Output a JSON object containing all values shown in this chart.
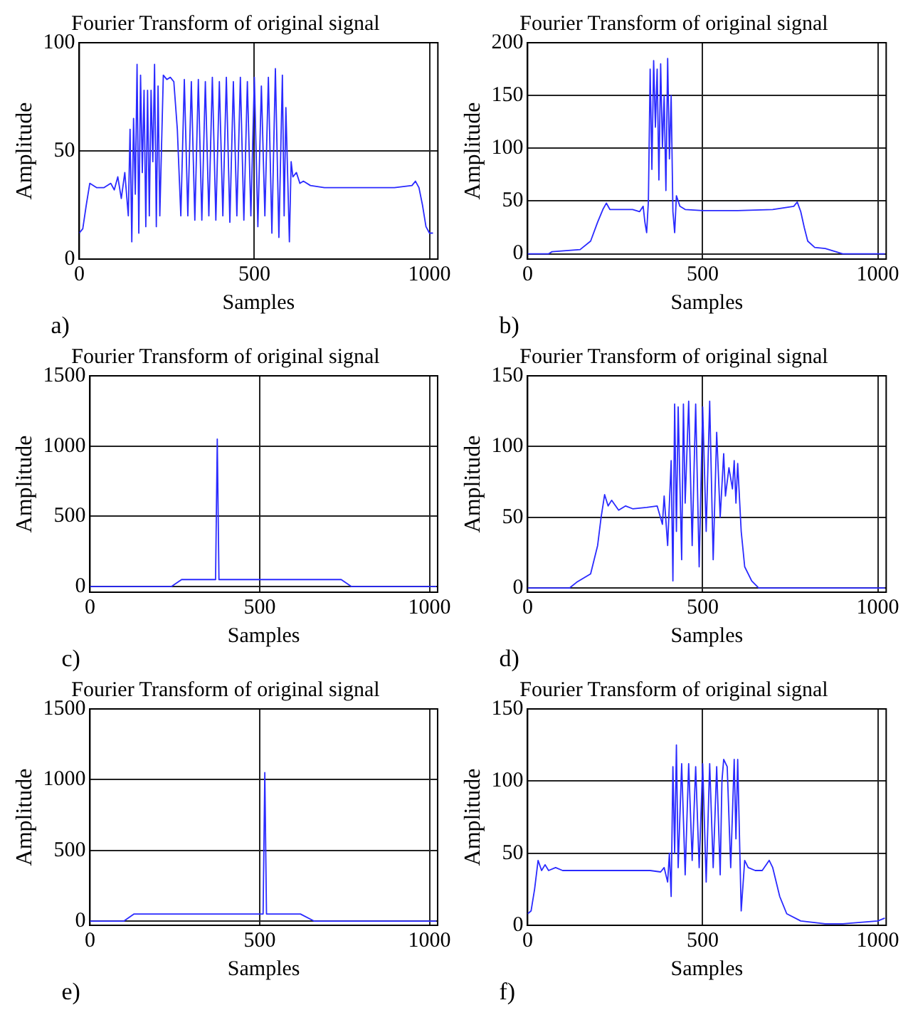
{
  "chart_data": [
    {
      "type": "line",
      "title": "Fourier Transform of original signal",
      "xlabel": "Samples",
      "ylabel": "Amplitude",
      "annotations": [
        "a)"
      ],
      "grid": true,
      "xlim": [
        0,
        1024
      ],
      "xticks": [
        0,
        500,
        1000
      ],
      "ylim": [
        0,
        100
      ],
      "yticks": [
        0,
        50,
        100
      ],
      "x": [
        0,
        10,
        20,
        30,
        50,
        70,
        90,
        100,
        110,
        120,
        130,
        140,
        145,
        150,
        155,
        160,
        165,
        170,
        175,
        180,
        185,
        190,
        195,
        200,
        205,
        210,
        215,
        220,
        225,
        230,
        240,
        250,
        260,
        270,
        280,
        290,
        300,
        310,
        320,
        330,
        340,
        350,
        360,
        370,
        380,
        390,
        400,
        410,
        420,
        430,
        440,
        450,
        460,
        470,
        480,
        490,
        500,
        510,
        520,
        530,
        540,
        550,
        560,
        570,
        580,
        585,
        590,
        600,
        605,
        610,
        620,
        630,
        640,
        660,
        700,
        800,
        900,
        950,
        960,
        970,
        980,
        990,
        1000,
        1010
      ],
      "series": [
        {
          "color": "#2a2aff",
          "values": [
            12,
            14,
            25,
            35,
            33,
            33,
            35,
            32,
            38,
            28,
            40,
            20,
            60,
            8,
            65,
            30,
            90,
            12,
            85,
            40,
            78,
            15,
            78,
            20,
            78,
            45,
            90,
            15,
            80,
            20,
            85,
            83,
            84,
            82,
            60,
            20,
            83,
            20,
            82,
            18,
            83,
            18,
            82,
            20,
            84,
            18,
            82,
            20,
            84,
            17,
            82,
            20,
            84,
            18,
            82,
            20,
            84,
            15,
            80,
            20,
            84,
            12,
            88,
            10,
            85,
            20,
            70,
            8,
            45,
            38,
            40,
            35,
            36,
            34,
            33,
            33,
            33,
            34,
            36,
            33,
            25,
            15,
            12,
            12
          ]
        }
      ]
    },
    {
      "type": "line",
      "title": "Fourier Transform of original signal",
      "xlabel": "Samples",
      "ylabel": "Amplitude",
      "annotations": [
        "b)"
      ],
      "grid": true,
      "xlim": [
        0,
        1024
      ],
      "xticks": [
        0,
        500,
        1000
      ],
      "ylim": [
        -5,
        200
      ],
      "yticks": [
        0,
        50,
        100,
        150,
        200
      ],
      "x": [
        0,
        60,
        70,
        150,
        180,
        200,
        215,
        225,
        235,
        300,
        320,
        330,
        335,
        340,
        345,
        350,
        355,
        360,
        365,
        370,
        375,
        380,
        385,
        390,
        395,
        400,
        405,
        410,
        415,
        420,
        425,
        435,
        450,
        500,
        600,
        700,
        760,
        770,
        780,
        790,
        800,
        820,
        850,
        880,
        900,
        1000,
        1020
      ],
      "series": [
        {
          "color": "#2a2aff",
          "values": [
            0,
            0,
            2,
            4,
            12,
            30,
            42,
            48,
            42,
            42,
            40,
            45,
            30,
            20,
            50,
            175,
            80,
            183,
            120,
            175,
            70,
            180,
            100,
            150,
            60,
            185,
            90,
            150,
            40,
            20,
            55,
            45,
            42,
            41,
            41,
            42,
            45,
            49,
            40,
            25,
            12,
            6,
            5,
            2,
            0,
            0,
            0
          ]
        }
      ]
    },
    {
      "type": "line",
      "title": "Fourier Transform of original signal",
      "xlabel": "Samples",
      "ylabel": "Amplitude",
      "annotations": [
        "c)"
      ],
      "grid": true,
      "xlim": [
        0,
        1024
      ],
      "xticks": [
        0,
        500,
        1000
      ],
      "ylim": [
        -40,
        1500
      ],
      "yticks": [
        0,
        500,
        1000,
        1500
      ],
      "x": [
        0,
        240,
        270,
        370,
        375,
        380,
        740,
        770,
        1020
      ],
      "series": [
        {
          "color": "#2a2aff",
          "values": [
            0,
            0,
            50,
            50,
            1050,
            50,
            50,
            0,
            0
          ]
        }
      ]
    },
    {
      "type": "line",
      "title": "Fourier Transform of original signal",
      "xlabel": "Samples",
      "ylabel": "Amplitude",
      "annotations": [
        "d)"
      ],
      "grid": true,
      "xlim": [
        0,
        1024
      ],
      "xticks": [
        0,
        500,
        1000
      ],
      "ylim": [
        -3,
        150
      ],
      "yticks": [
        0,
        50,
        100,
        150
      ],
      "x": [
        0,
        120,
        140,
        180,
        200,
        210,
        220,
        230,
        240,
        260,
        280,
        300,
        340,
        370,
        385,
        390,
        400,
        410,
        415,
        420,
        425,
        430,
        440,
        445,
        450,
        460,
        470,
        480,
        490,
        500,
        510,
        520,
        530,
        540,
        550,
        560,
        565,
        575,
        585,
        590,
        595,
        600,
        610,
        620,
        640,
        660,
        1020
      ],
      "series": [
        {
          "color": "#2a2aff",
          "values": [
            0,
            0,
            4,
            10,
            30,
            50,
            66,
            58,
            62,
            55,
            58,
            56,
            57,
            58,
            45,
            65,
            30,
            90,
            5,
            130,
            40,
            128,
            20,
            130,
            60,
            132,
            30,
            130,
            15,
            128,
            40,
            132,
            20,
            110,
            50,
            95,
            65,
            85,
            70,
            90,
            60,
            88,
            40,
            15,
            5,
            0,
            0
          ]
        }
      ]
    },
    {
      "type": "line",
      "title": "Fourier Transform of original signal",
      "xlabel": "Samples",
      "ylabel": "Amplitude",
      "annotations": [
        "e)"
      ],
      "grid": true,
      "xlim": [
        0,
        1024
      ],
      "xticks": [
        0,
        500,
        1000
      ],
      "ylim": [
        -30,
        1500
      ],
      "yticks": [
        0,
        500,
        1000,
        1500
      ],
      "x": [
        0,
        100,
        130,
        510,
        515,
        520,
        620,
        660,
        1020
      ],
      "series": [
        {
          "color": "#2a2aff",
          "values": [
            0,
            0,
            50,
            50,
            1050,
            50,
            50,
            0,
            0
          ]
        }
      ]
    },
    {
      "type": "line",
      "title": "Fourier Transform of original signal",
      "xlabel": "Samples",
      "ylabel": "Amplitude",
      "annotations": [
        "f)"
      ],
      "grid": true,
      "xlim": [
        0,
        1024
      ],
      "xticks": [
        0,
        500,
        1000
      ],
      "ylim": [
        0,
        150
      ],
      "yticks": [
        0,
        50,
        100,
        150
      ],
      "x": [
        0,
        10,
        20,
        30,
        40,
        50,
        60,
        80,
        100,
        150,
        300,
        350,
        380,
        390,
        400,
        405,
        410,
        415,
        420,
        425,
        430,
        440,
        450,
        460,
        470,
        480,
        490,
        500,
        510,
        520,
        530,
        540,
        550,
        555,
        560,
        570,
        580,
        590,
        595,
        600,
        610,
        620,
        630,
        650,
        670,
        690,
        700,
        720,
        740,
        780,
        850,
        900,
        950,
        1000,
        1020
      ],
      "series": [
        {
          "color": "#2a2aff",
          "values": [
            8,
            10,
            25,
            45,
            38,
            42,
            38,
            40,
            38,
            38,
            38,
            38,
            37,
            40,
            30,
            50,
            20,
            110,
            50,
            125,
            40,
            112,
            35,
            112,
            45,
            110,
            40,
            112,
            30,
            112,
            40,
            110,
            35,
            100,
            115,
            110,
            40,
            115,
            60,
            115,
            10,
            45,
            40,
            38,
            38,
            45,
            40,
            20,
            8,
            3,
            1,
            1,
            2,
            3,
            5
          ]
        }
      ]
    }
  ]
}
